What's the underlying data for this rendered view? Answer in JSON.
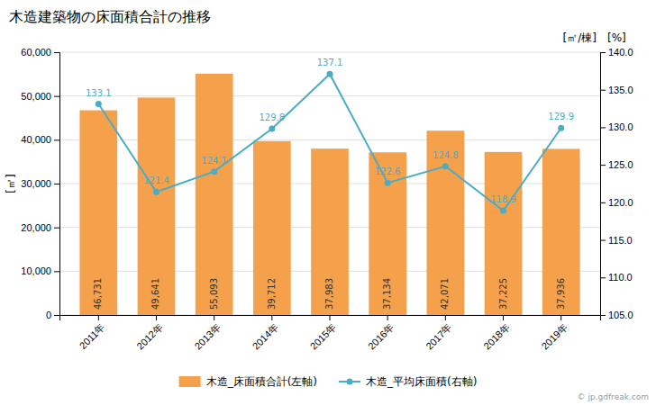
{
  "chart_data": {
    "type": "bar",
    "title": "木造建築物の床面積合計の推移",
    "categories": [
      "2011年",
      "2012年",
      "2013年",
      "2014年",
      "2015年",
      "2016年",
      "2017年",
      "2018年",
      "2019年"
    ],
    "series": [
      {
        "name": "木造_床面積合計(左軸)",
        "type": "bar",
        "color": "#f5a04a",
        "values": [
          46731,
          49641,
          55093,
          39712,
          37983,
          37134,
          42071,
          37225,
          37936
        ],
        "value_labels": [
          "46,731",
          "49,641",
          "55,093",
          "39,712",
          "37,983",
          "37,134",
          "42,071",
          "37,225",
          "37,936"
        ]
      },
      {
        "name": "木造_平均床面積(右軸)",
        "type": "line",
        "axis": "y2",
        "color": "#4bacc6",
        "marker": "circle",
        "values": [
          133.1,
          121.4,
          124.1,
          129.8,
          137.1,
          122.6,
          124.8,
          118.9,
          129.9
        ]
      }
    ],
    "ylabel": "[㎡]",
    "y2label": [
      "[㎡/棟]",
      "[%]"
    ],
    "ylim": [
      0,
      60000
    ],
    "yticks": [
      0,
      {
        "value": 10000,
        "label": "10,000"
      },
      {
        "value": 20000,
        "label": "20,000"
      },
      {
        "value": 30000,
        "label": "30,000"
      },
      {
        "value": 40000,
        "label": "40,000"
      },
      {
        "value": 50000,
        "label": "50,000"
      },
      {
        "value": 60000,
        "label": "60,000"
      }
    ],
    "y2lim": [
      105.0,
      140.0
    ],
    "y2ticks": [
      {
        "value": 105.0,
        "label": "105.0"
      },
      {
        "value": 110.0,
        "label": "110.0"
      },
      {
        "value": 115.0,
        "label": "115.0"
      },
      {
        "value": 120.0,
        "label": "120.0"
      },
      {
        "value": 125.0,
        "label": "125.0"
      },
      {
        "value": 130.0,
        "label": "130.0"
      },
      {
        "value": 135.0,
        "label": "135.0"
      },
      {
        "value": 140.0,
        "label": "140.0"
      }
    ],
    "grid": true,
    "data_labels": true,
    "legend": "bottom",
    "annotations": [
      "© jp.gdfreak.com"
    ]
  }
}
